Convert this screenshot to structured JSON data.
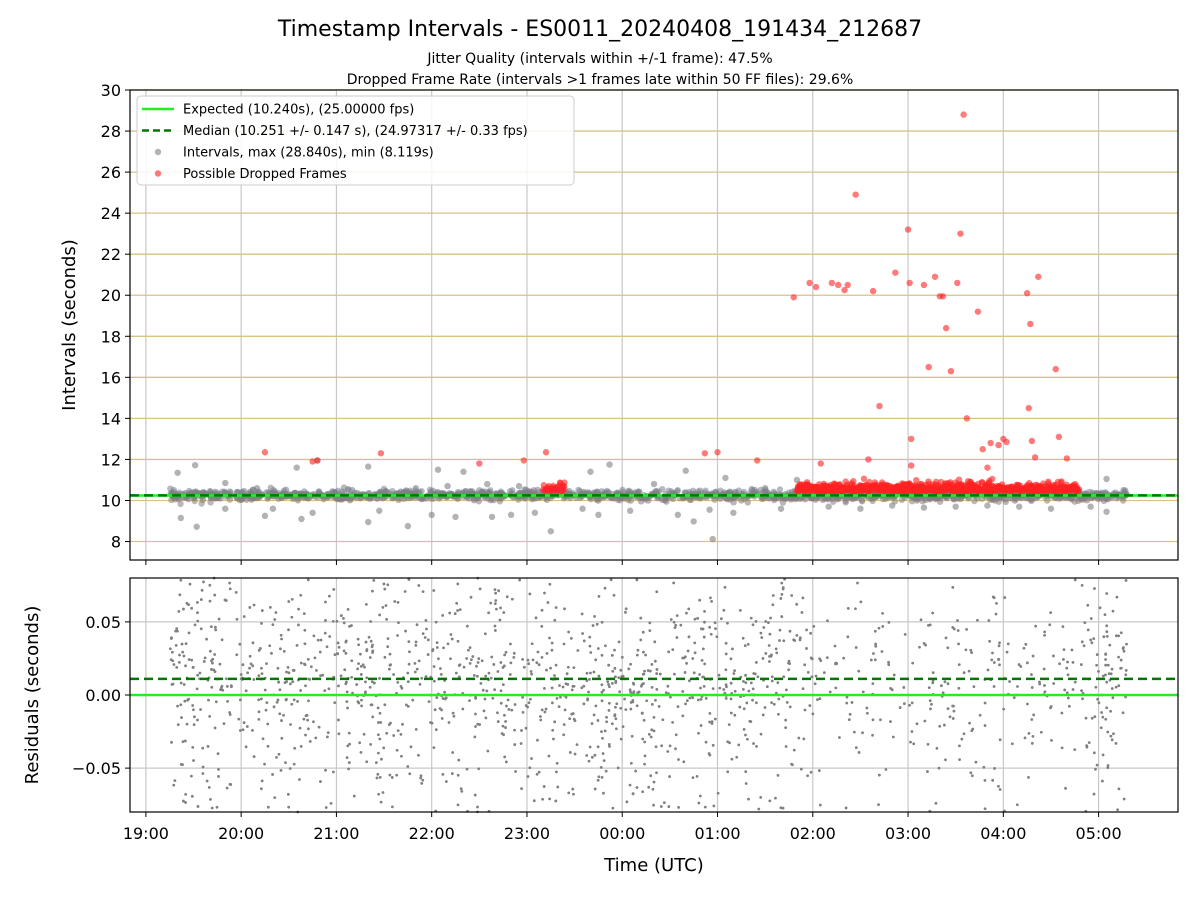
{
  "chart_data": [
    {
      "type": "scatter",
      "title": "Timestamp Intervals - ES0011_20240408_191434_212687",
      "subtitle_lines": [
        "Jitter Quality (intervals within +/-1 frame): 47.5%",
        "Dropped Frame Rate (intervals >1 frames late within 50 FF files): 29.6%"
      ],
      "xlabel": "",
      "ylabel": "Intervals (seconds)",
      "xlim": [
        "18:50",
        "05:50"
      ],
      "ylim": [
        7.1,
        30
      ],
      "yticks": [
        8,
        10,
        12,
        14,
        16,
        18,
        20,
        22,
        24,
        26,
        28,
        30
      ],
      "grid": true,
      "legend_placement": "top-left",
      "reference_lines": [
        {
          "name": "Expected (10.240s), (25.00000 fps)",
          "y": 10.24,
          "style": "solid",
          "color": "#22ee22"
        },
        {
          "name": "Median (10.251 +/- 0.147 s), (24.97317 +/- 0.33 fps)",
          "y": 10.251,
          "style": "dashed",
          "color": "#007700"
        }
      ],
      "series": [
        {
          "name": "Intervals, max (28.840s), min (8.119s)",
          "color": "#808080",
          "baseline_y": 10.25,
          "band_start": "19:15",
          "band_end": "05:18",
          "points": [
            {
              "x": "19:20",
              "y": 11.35
            },
            {
              "x": "19:22",
              "y": 9.15
            },
            {
              "x": "19:31",
              "y": 11.72
            },
            {
              "x": "19:32",
              "y": 8.72
            },
            {
              "x": "19:50",
              "y": 10.85
            },
            {
              "x": "19:50",
              "y": 9.6
            },
            {
              "x": "20:10",
              "y": 10.6
            },
            {
              "x": "20:15",
              "y": 9.25
            },
            {
              "x": "20:20",
              "y": 9.6
            },
            {
              "x": "20:35",
              "y": 11.6
            },
            {
              "x": "20:38",
              "y": 9.1
            },
            {
              "x": "20:45",
              "y": 9.4
            },
            {
              "x": "20:48",
              "y": 11.95
            },
            {
              "x": "21:10",
              "y": 10.5
            },
            {
              "x": "21:20",
              "y": 11.65
            },
            {
              "x": "21:20",
              "y": 8.95
            },
            {
              "x": "21:27",
              "y": 9.5
            },
            {
              "x": "21:45",
              "y": 8.75
            },
            {
              "x": "21:50",
              "y": 10.6
            },
            {
              "x": "22:00",
              "y": 9.3
            },
            {
              "x": "22:04",
              "y": 11.5
            },
            {
              "x": "22:10",
              "y": 10.7
            },
            {
              "x": "22:15",
              "y": 9.2
            },
            {
              "x": "22:20",
              "y": 11.4
            },
            {
              "x": "22:35",
              "y": 10.8
            },
            {
              "x": "22:38",
              "y": 9.2
            },
            {
              "x": "22:50",
              "y": 9.3
            },
            {
              "x": "22:55",
              "y": 10.7
            },
            {
              "x": "23:05",
              "y": 9.4
            },
            {
              "x": "23:15",
              "y": 8.5
            },
            {
              "x": "23:20",
              "y": 10.7
            },
            {
              "x": "23:35",
              "y": 9.6
            },
            {
              "x": "23:40",
              "y": 11.4
            },
            {
              "x": "23:45",
              "y": 9.3
            },
            {
              "x": "23:52",
              "y": 11.75
            },
            {
              "x": "00:05",
              "y": 9.5
            },
            {
              "x": "00:20",
              "y": 10.8
            },
            {
              "x": "00:35",
              "y": 9.3
            },
            {
              "x": "00:40",
              "y": 11.45
            },
            {
              "x": "00:45",
              "y": 8.98
            },
            {
              "x": "00:55",
              "y": 9.55
            },
            {
              "x": "00:57",
              "y": 8.12
            },
            {
              "x": "01:05",
              "y": 11.1
            },
            {
              "x": "01:10",
              "y": 9.4
            },
            {
              "x": "01:30",
              "y": 10.6
            },
            {
              "x": "01:40",
              "y": 9.6
            },
            {
              "x": "01:50",
              "y": 11.0
            },
            {
              "x": "02:10",
              "y": 9.7
            },
            {
              "x": "02:30",
              "y": 9.6
            },
            {
              "x": "02:50",
              "y": 9.75
            },
            {
              "x": "03:10",
              "y": 9.65
            },
            {
              "x": "03:30",
              "y": 9.7
            },
            {
              "x": "03:50",
              "y": 9.75
            },
            {
              "x": "04:10",
              "y": 9.7
            },
            {
              "x": "04:30",
              "y": 9.6
            },
            {
              "x": "04:55",
              "y": 9.7
            },
            {
              "x": "05:05",
              "y": 9.45
            },
            {
              "x": "05:05",
              "y": 11.05
            }
          ]
        },
        {
          "name": "Possible Dropped Frames",
          "color": "#ff2222",
          "cluster_x_ranges": [
            [
              "23:10",
              "23:25"
            ],
            [
              "01:50",
              "04:48"
            ]
          ],
          "points": [
            {
              "x": "20:15",
              "y": 12.35
            },
            {
              "x": "20:48",
              "y": 11.95
            },
            {
              "x": "20:45",
              "y": 11.9
            },
            {
              "x": "21:28",
              "y": 12.3
            },
            {
              "x": "22:30",
              "y": 11.8
            },
            {
              "x": "22:58",
              "y": 11.95
            },
            {
              "x": "23:12",
              "y": 12.35
            },
            {
              "x": "00:52",
              "y": 12.3
            },
            {
              "x": "01:00",
              "y": 12.35
            },
            {
              "x": "01:25",
              "y": 11.95
            },
            {
              "x": "01:48",
              "y": 19.9
            },
            {
              "x": "01:58",
              "y": 20.6
            },
            {
              "x": "02:02",
              "y": 20.4
            },
            {
              "x": "02:05",
              "y": 11.8
            },
            {
              "x": "02:12",
              "y": 20.6
            },
            {
              "x": "02:16",
              "y": 20.5
            },
            {
              "x": "02:20",
              "y": 20.25
            },
            {
              "x": "02:22",
              "y": 20.5
            },
            {
              "x": "02:27",
              "y": 24.9
            },
            {
              "x": "02:35",
              "y": 12.0
            },
            {
              "x": "02:38",
              "y": 20.2
            },
            {
              "x": "02:42",
              "y": 14.6
            },
            {
              "x": "02:52",
              "y": 21.1
            },
            {
              "x": "03:01",
              "y": 20.6
            },
            {
              "x": "03:02",
              "y": 11.7
            },
            {
              "x": "03:00",
              "y": 23.2
            },
            {
              "x": "03:02",
              "y": 13.0
            },
            {
              "x": "03:10",
              "y": 20.5
            },
            {
              "x": "03:13",
              "y": 16.5
            },
            {
              "x": "03:17",
              "y": 20.9
            },
            {
              "x": "03:20",
              "y": 19.95
            },
            {
              "x": "03:22",
              "y": 19.95
            },
            {
              "x": "03:24",
              "y": 18.4
            },
            {
              "x": "03:27",
              "y": 16.3
            },
            {
              "x": "03:31",
              "y": 20.6
            },
            {
              "x": "03:33",
              "y": 23.0
            },
            {
              "x": "03:35",
              "y": 28.8
            },
            {
              "x": "03:37",
              "y": 14.0
            },
            {
              "x": "03:44",
              "y": 19.2
            },
            {
              "x": "03:47",
              "y": 12.5
            },
            {
              "x": "03:50",
              "y": 11.6
            },
            {
              "x": "03:52",
              "y": 12.8
            },
            {
              "x": "03:57",
              "y": 12.7
            },
            {
              "x": "04:00",
              "y": 13.0
            },
            {
              "x": "04:02",
              "y": 12.85
            },
            {
              "x": "04:15",
              "y": 20.1
            },
            {
              "x": "04:16",
              "y": 14.5
            },
            {
              "x": "04:17",
              "y": 18.6
            },
            {
              "x": "04:18",
              "y": 12.9
            },
            {
              "x": "04:20",
              "y": 12.1
            },
            {
              "x": "04:22",
              "y": 20.9
            },
            {
              "x": "04:33",
              "y": 16.4
            },
            {
              "x": "04:35",
              "y": 13.1
            },
            {
              "x": "04:40",
              "y": 12.05
            }
          ]
        }
      ],
      "xticks": [
        "19:00",
        "20:00",
        "21:00",
        "22:00",
        "23:00",
        "00:00",
        "01:00",
        "02:00",
        "03:00",
        "04:00",
        "05:00"
      ]
    },
    {
      "type": "scatter",
      "xlabel": "Time (UTC)",
      "ylabel": "Residuals (seconds)",
      "xlim": [
        "18:50",
        "05:50"
      ],
      "ylim": [
        -0.08,
        0.08
      ],
      "yticks": [
        -0.05,
        0.0,
        0.05
      ],
      "ytick_labels": [
        "−0.05",
        "0.00",
        "0.05"
      ],
      "xticks": [
        "19:00",
        "20:00",
        "21:00",
        "22:00",
        "23:00",
        "00:00",
        "01:00",
        "02:00",
        "03:00",
        "04:00",
        "05:00"
      ],
      "grid": true,
      "reference_lines": [
        {
          "y": 0.0,
          "style": "solid",
          "color": "#22ee22"
        },
        {
          "y": 0.011,
          "style": "dashed",
          "color": "#007700"
        }
      ],
      "series": [
        {
          "color": "#808080",
          "x_range": [
            "19:15",
            "05:18"
          ],
          "y_range": [
            -0.08,
            0.08
          ],
          "point_count": 1800
        }
      ]
    }
  ]
}
